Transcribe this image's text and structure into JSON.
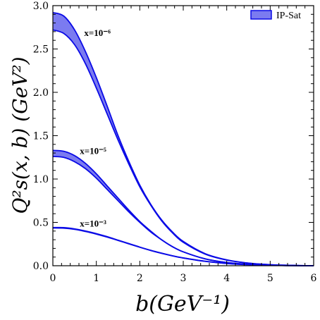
{
  "chart_data": {
    "type": "area",
    "xlabel": "b(GeV⁻¹)",
    "ylabel": "Q²s(x, b) (GeV²)",
    "xlim": [
      0,
      6
    ],
    "ylim": [
      0,
      3.0
    ],
    "x_ticks": [
      "0",
      "1",
      "2",
      "3",
      "4",
      "5",
      "6"
    ],
    "y_ticks": [
      "0.0",
      "0.5",
      "1.0",
      "1.5",
      "2.0",
      "2.5",
      "3.0"
    ],
    "x_tick_values": [
      0,
      1,
      2,
      3,
      4,
      5,
      6
    ],
    "y_tick_values": [
      0,
      0.5,
      1.0,
      1.5,
      2.0,
      2.5,
      3.0
    ],
    "grid": false,
    "legend": {
      "position": "top-right",
      "entries": [
        "IP-Sat"
      ]
    },
    "x": [
      0,
      0.25,
      0.5,
      0.75,
      1.0,
      1.25,
      1.5,
      1.75,
      2.0,
      2.25,
      2.5,
      2.75,
      3.0,
      3.5,
      4.0,
      4.5,
      5.0,
      5.5,
      6.0
    ],
    "series": [
      {
        "name": "IP-Sat",
        "annotation": "x=10⁻⁶",
        "annotation_x": 0.72,
        "annotation_y": 2.65,
        "upper": [
          2.92,
          2.88,
          2.72,
          2.47,
          2.17,
          1.84,
          1.5,
          1.2,
          0.93,
          0.71,
          0.53,
          0.39,
          0.28,
          0.14,
          0.068,
          0.03,
          0.012,
          0.004,
          0.0
        ],
        "lower": [
          2.72,
          2.68,
          2.55,
          2.33,
          2.05,
          1.75,
          1.45,
          1.17,
          0.91,
          0.7,
          0.52,
          0.38,
          0.27,
          0.135,
          0.065,
          0.029,
          0.011,
          0.004,
          0.0
        ]
      },
      {
        "name": "IP-Sat",
        "annotation": "x=10⁻⁵",
        "annotation_x": 0.62,
        "annotation_y": 1.29,
        "upper": [
          1.33,
          1.32,
          1.27,
          1.18,
          1.06,
          0.92,
          0.78,
          0.64,
          0.51,
          0.4,
          0.3,
          0.22,
          0.16,
          0.08,
          0.037,
          0.016,
          0.006,
          0.002,
          0.0
        ],
        "lower": [
          1.26,
          1.25,
          1.2,
          1.12,
          1.01,
          0.88,
          0.75,
          0.62,
          0.5,
          0.39,
          0.3,
          0.22,
          0.16,
          0.079,
          0.036,
          0.016,
          0.006,
          0.002,
          0.0
        ]
      },
      {
        "name": "IP-Sat",
        "annotation": "x=10⁻³",
        "annotation_x": 0.62,
        "annotation_y": 0.45,
        "upper": [
          0.44,
          0.44,
          0.425,
          0.4,
          0.37,
          0.335,
          0.295,
          0.255,
          0.215,
          0.178,
          0.145,
          0.115,
          0.09,
          0.052,
          0.027,
          0.013,
          0.005,
          0.002,
          0.0
        ],
        "lower": [
          0.435,
          0.433,
          0.42,
          0.395,
          0.365,
          0.33,
          0.292,
          0.252,
          0.213,
          0.176,
          0.143,
          0.114,
          0.089,
          0.051,
          0.026,
          0.012,
          0.005,
          0.002,
          0.0
        ]
      }
    ],
    "colors": {
      "band_fill": "#7b7bf0",
      "band_edge": "#0a0ae6",
      "axis": "#000000"
    }
  }
}
